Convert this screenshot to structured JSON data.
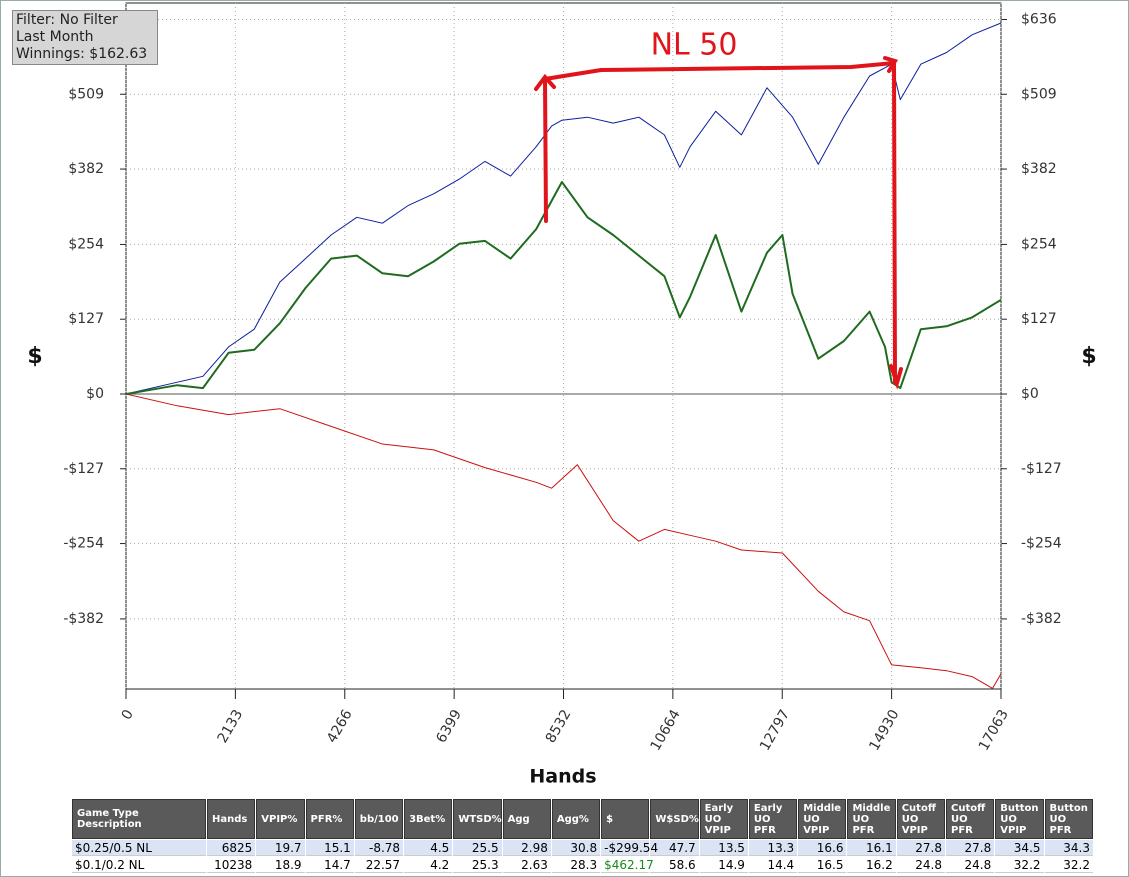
{
  "info": {
    "filter": "Filter: No Filter",
    "period": "Last Month",
    "winnings": "Winnings: $162.63"
  },
  "chart_data": {
    "type": "line",
    "annotation": "NL 50",
    "y_label": "$",
    "y2_label": "$",
    "x_label": "Hands",
    "xlim": [
      0,
      17063
    ],
    "xticks": [
      0,
      2133,
      4266,
      6399,
      8532,
      10664,
      12797,
      14930,
      17063
    ],
    "ylim": [
      -501,
      664
    ],
    "yticks": [
      {
        "value": -382,
        "label": "-$382"
      },
      {
        "value": -254,
        "label": "-$254"
      },
      {
        "value": -127,
        "label": "-$127"
      },
      {
        "value": 0,
        "label": "$0"
      },
      {
        "value": 127,
        "label": "$127"
      },
      {
        "value": 254,
        "label": "$254"
      },
      {
        "value": 382,
        "label": "$382"
      },
      {
        "value": 509,
        "label": "$509"
      },
      {
        "value": 636,
        "label": "$636"
      }
    ],
    "grid": true,
    "series": [
      {
        "color": "#0d1f9c",
        "width": 1,
        "x": [
          0,
          1000,
          1500,
          2000,
          2500,
          3000,
          3500,
          4000,
          4500,
          5000,
          5500,
          6000,
          6500,
          7000,
          7500,
          8000,
          8300,
          8500,
          9000,
          9500,
          10000,
          10500,
          10800,
          11000,
          11500,
          12000,
          12500,
          13000,
          13500,
          14000,
          14500,
          14930,
          15100,
          15500,
          16000,
          16500,
          17063
        ],
        "values": [
          0,
          20,
          30,
          80,
          110,
          190,
          230,
          270,
          300,
          290,
          320,
          340,
          365,
          395,
          370,
          420,
          455,
          465,
          470,
          460,
          470,
          440,
          385,
          420,
          480,
          440,
          520,
          470,
          390,
          470,
          540,
          560,
          500,
          560,
          580,
          610,
          630
        ]
      },
      {
        "color": "#1f6b1f",
        "width": 2,
        "x": [
          0,
          1000,
          1500,
          2000,
          2500,
          3000,
          3500,
          4000,
          4500,
          5000,
          5500,
          6000,
          6500,
          7000,
          7500,
          8000,
          8500,
          9000,
          9500,
          10000,
          10500,
          10800,
          11000,
          11500,
          12000,
          12500,
          12800,
          13000,
          13500,
          14000,
          14500,
          14800,
          14930,
          15100,
          15500,
          16000,
          16500,
          17063
        ],
        "values": [
          0,
          15,
          10,
          70,
          75,
          120,
          180,
          230,
          235,
          205,
          200,
          225,
          255,
          260,
          230,
          280,
          360,
          300,
          270,
          235,
          200,
          130,
          165,
          270,
          140,
          240,
          270,
          170,
          60,
          90,
          140,
          80,
          20,
          10,
          110,
          115,
          130,
          160
        ]
      },
      {
        "color": "#cc1111",
        "width": 1,
        "x": [
          0,
          1000,
          2000,
          3000,
          4000,
          5000,
          6000,
          7000,
          8000,
          8300,
          8800,
          9500,
          10000,
          10500,
          11000,
          11500,
          12000,
          12800,
          13500,
          14000,
          14500,
          14930,
          15500,
          16000,
          16500,
          16900,
          17063
        ],
        "values": [
          0,
          -20,
          -35,
          -25,
          -55,
          -85,
          -95,
          -125,
          -150,
          -160,
          -120,
          -215,
          -250,
          -230,
          -240,
          -250,
          -265,
          -270,
          -335,
          -370,
          -385,
          -460,
          -465,
          -470,
          -480,
          -500,
          -475
        ]
      }
    ]
  },
  "table": {
    "columns": [
      "Game Type Description",
      "Hands",
      "VPIP%",
      "PFR%",
      "bb/100",
      "3Bet%",
      "WTSD%",
      "Agg",
      "Agg%",
      "$",
      "W$SD%",
      "Early UO VPIP",
      "Early UO PFR",
      "Middle UO VPIP",
      "Middle UO PFR",
      "Cutoff UO VPIP",
      "Cutoff UO PFR",
      "Button UO VPIP",
      "Button UO PFR"
    ],
    "rows": [
      [
        "$0.25/0.5 NL",
        "6825",
        "19.7",
        "15.1",
        "-8.78",
        "4.5",
        "25.5",
        "2.98",
        "30.8",
        "-$299.54",
        "47.7",
        "13.5",
        "13.3",
        "16.6",
        "16.1",
        "27.8",
        "27.8",
        "34.5",
        "34.3"
      ],
      [
        "$0.1/0.2 NL",
        "10238",
        "18.9",
        "14.7",
        "22.57",
        "4.2",
        "25.3",
        "2.63",
        "28.3",
        "$462.17",
        "58.6",
        "14.9",
        "14.4",
        "16.5",
        "16.2",
        "24.8",
        "24.8",
        "32.2",
        "32.2"
      ]
    ]
  }
}
